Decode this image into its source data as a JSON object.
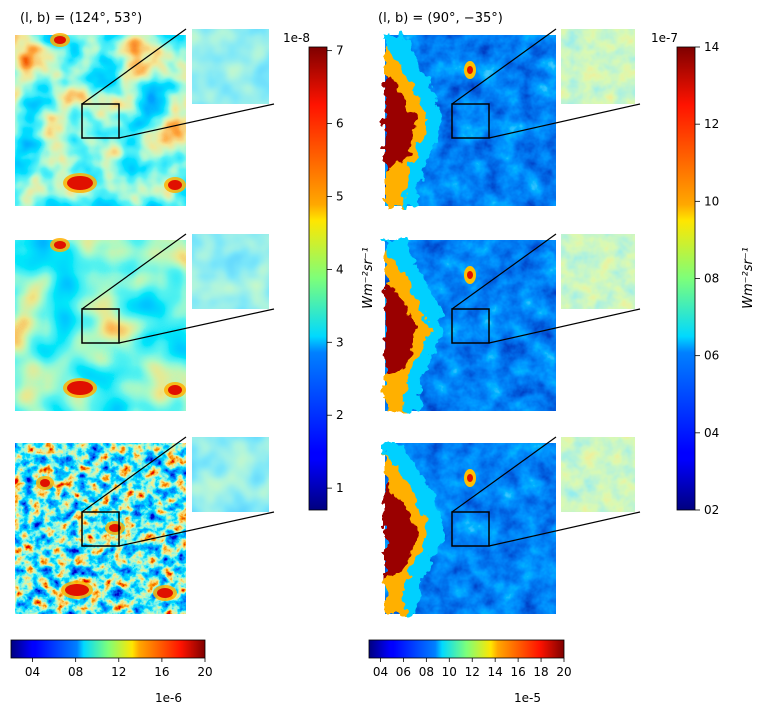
{
  "figure": {
    "columns": [
      {
        "title": "(l, b) = (124°, 53°)",
        "theme": "smooth-cyan",
        "rows": [
          "smooth",
          "smooth",
          "noisy"
        ]
      },
      {
        "title": "(l, b) = (90°, −35°)",
        "theme": "red-left-blue",
        "rows": [
          "full",
          "full",
          "full"
        ]
      }
    ]
  },
  "colorbars": {
    "left_vertical": {
      "unit": "Wm⁻²sr⁻¹",
      "exponent": "1e-8",
      "ticks": [
        "1",
        "2",
        "3",
        "4",
        "5",
        "6",
        "7"
      ],
      "range": [
        0.7,
        7.05
      ]
    },
    "right_vertical": {
      "unit": "Wm⁻²sr⁻¹",
      "exponent": "1e-7",
      "ticks": [
        "02",
        "04",
        "06",
        "08",
        "10",
        "12",
        "14"
      ],
      "range": [
        0.2,
        1.4
      ]
    },
    "left_bottom": {
      "exponent": "1e-6",
      "ticks": [
        "04",
        "08",
        "12",
        "16",
        "20"
      ],
      "range": [
        0.2,
        2.0
      ]
    },
    "right_bottom": {
      "exponent": "1e-5",
      "ticks": [
        "04",
        "06",
        "08",
        "10",
        "12",
        "14",
        "16",
        "18",
        "20"
      ],
      "range": [
        0.3,
        2.0
      ]
    }
  },
  "chart_data": {
    "type": "heatmap",
    "colormap": "jet",
    "panels": [
      {
        "column": 1,
        "row": 1,
        "colorbar": "left_vertical"
      },
      {
        "column": 1,
        "row": 2,
        "colorbar": "left_vertical"
      },
      {
        "column": 1,
        "row": 3,
        "colorbar": "left_bottom"
      },
      {
        "column": 2,
        "row": 1,
        "colorbar": "right_vertical"
      },
      {
        "column": 2,
        "row": 2,
        "colorbar": "right_vertical"
      },
      {
        "column": 2,
        "row": 3,
        "colorbar": "right_bottom"
      }
    ]
  }
}
